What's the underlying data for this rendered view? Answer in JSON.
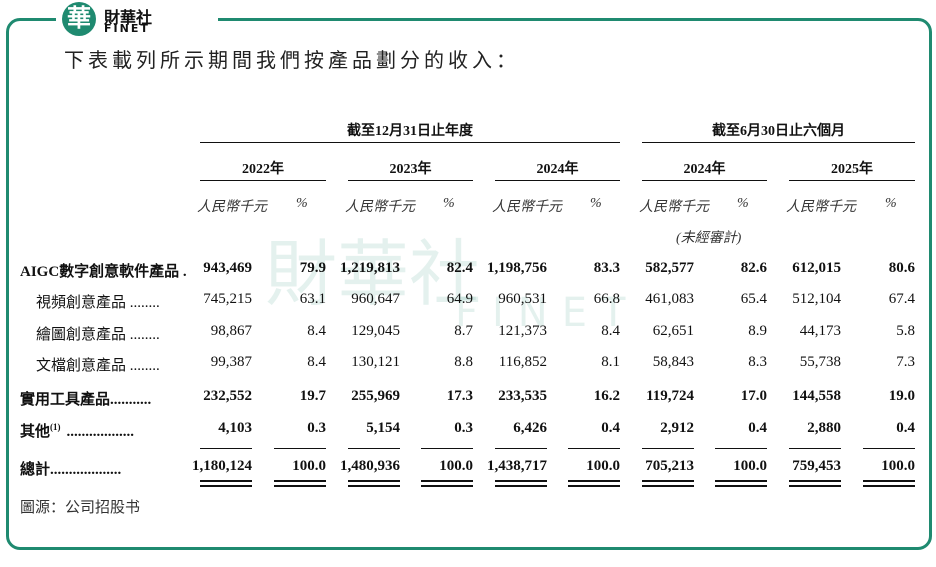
{
  "logo": {
    "mark": "華",
    "name": "財華社",
    "latin": "FINET"
  },
  "intro": "下表載列所示期間我們按產品劃分的收入：",
  "table": {
    "groups": [
      "截至12月31日止年度",
      "截至6月30日止六個月"
    ],
    "periods": [
      "2022年",
      "2023年",
      "2024年",
      "2024年",
      "2025年"
    ],
    "units": [
      "人民幣千元",
      "%"
    ],
    "note": "(未經審計)",
    "rows": [
      {
        "label": "AIGC數字創意軟件產品 .",
        "bold": true,
        "indent": false,
        "values": [
          "943,469",
          "79.9",
          "1,219,813",
          "82.4",
          "1,198,756",
          "83.3",
          "582,577",
          "82.6",
          "612,015",
          "80.6"
        ]
      },
      {
        "label": "視頻創意產品 ........",
        "bold": false,
        "indent": true,
        "values": [
          "745,215",
          "63.1",
          "960,647",
          "64.9",
          "960,531",
          "66.8",
          "461,083",
          "65.4",
          "512,104",
          "67.4"
        ]
      },
      {
        "label": "繪圖創意產品 ........",
        "bold": false,
        "indent": true,
        "values": [
          "98,867",
          "8.4",
          "129,045",
          "8.7",
          "121,373",
          "8.4",
          "62,651",
          "8.9",
          "44,173",
          "5.8"
        ]
      },
      {
        "label": "文檔創意產品 ........",
        "bold": false,
        "indent": true,
        "values": [
          "99,387",
          "8.4",
          "130,121",
          "8.8",
          "116,852",
          "8.1",
          "58,843",
          "8.3",
          "55,738",
          "7.3"
        ]
      },
      {
        "label": "實用工具產品...........",
        "bold": true,
        "indent": false,
        "values": [
          "232,552",
          "19.7",
          "255,969",
          "17.3",
          "233,535",
          "16.2",
          "119,724",
          "17.0",
          "144,558",
          "19.0"
        ]
      },
      {
        "label": "其他",
        "footnote": "(1)",
        "leader": "..................",
        "bold": true,
        "indent": false,
        "values": [
          "4,103",
          "0.3",
          "5,154",
          "0.3",
          "6,426",
          "0.4",
          "2,912",
          "0.4",
          "2,880",
          "0.4"
        ]
      },
      {
        "label": "總計...................",
        "bold": true,
        "indent": false,
        "values": [
          "1,180,124",
          "100.0",
          "1,480,936",
          "100.0",
          "1,438,717",
          "100.0",
          "705,213",
          "100.0",
          "759,453",
          "100.0"
        ]
      }
    ]
  },
  "source": "圖源：公司招股书",
  "watermark": {
    "name": "財華社",
    "latin": "FINET"
  }
}
